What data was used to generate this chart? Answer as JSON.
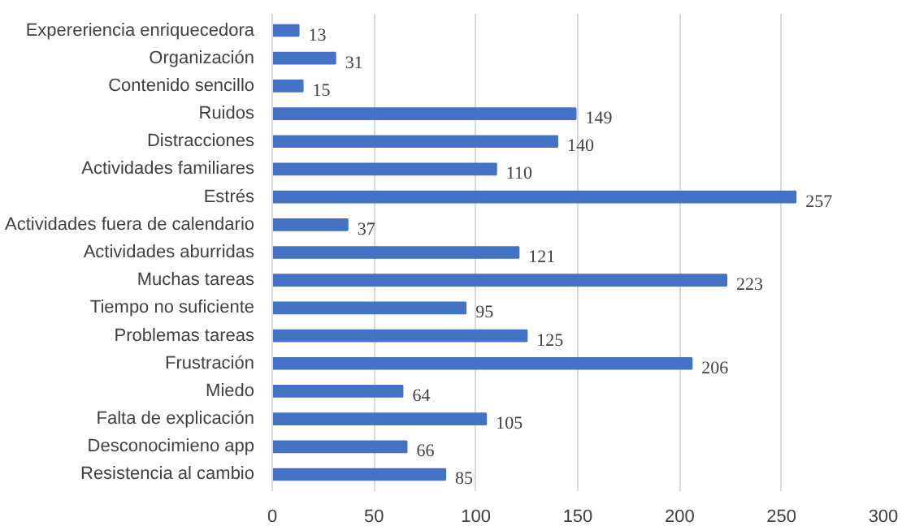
{
  "chart_data": {
    "type": "bar",
    "orientation": "horizontal",
    "categories": [
      "Expereriencia enriquecedora",
      "Organización",
      "Contenido sencillo",
      "Ruidos",
      "Distracciones",
      "Actividades familiares",
      "Estrés",
      "Actividades fuera de calendario",
      "Actividades aburridas",
      "Muchas tareas",
      "Tiempo no suficiente",
      "Problemas tareas",
      "Frustración",
      "Miedo",
      "Falta de explicación",
      "Desconocimieno app",
      "Resistencia al cambio"
    ],
    "values": [
      13,
      31,
      15,
      149,
      140,
      110,
      257,
      37,
      121,
      223,
      95,
      125,
      206,
      64,
      105,
      66,
      85
    ],
    "color": "#4472c4",
    "xlim": [
      0,
      300
    ],
    "xticks": [
      0,
      50,
      100,
      150,
      200,
      250,
      300
    ],
    "grid": "x",
    "data_labels": true
  }
}
